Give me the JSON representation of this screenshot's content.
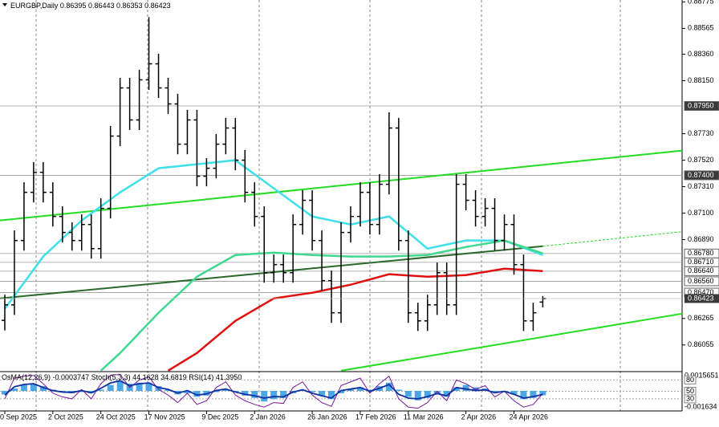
{
  "chart_data": {
    "type": "ohlc",
    "title": "EURGBP,Daily",
    "color": "#000000",
    "open": [
      0.8625,
      0.86373,
      0.86883,
      0.87265,
      0.87424,
      0.87265,
      0.87074,
      0.86947,
      0.86883,
      0.8701,
      0.86819,
      0.87138,
      0.87711,
      0.88093,
      0.87839,
      0.88157,
      0.88284,
      0.88093,
      0.87966,
      0.87647,
      0.87839,
      0.87393,
      0.87456,
      0.87647,
      0.87775,
      0.8752,
      0.87265,
      0.87074,
      0.86628,
      0.86692,
      0.86628,
      0.8701,
      0.87202,
      0.86883,
      0.86565,
      0.8631,
      0.86947,
      0.87074,
      0.87265,
      0.8701,
      0.87329,
      0.87775,
      0.86883,
      0.8631,
      0.86246,
      0.86373,
      0.86628,
      0.86373,
      0.87329,
      0.87202,
      0.87074,
      0.87138,
      0.86883,
      0.8701,
      0.86692,
      0.86246,
      0.86395
    ],
    "high": [
      0.86453,
      0.86963,
      0.87345,
      0.87504,
      0.87504,
      0.87345,
      0.87154,
      0.87027,
      0.8709,
      0.8709,
      0.87218,
      0.87791,
      0.88173,
      0.88173,
      0.88237,
      0.88654,
      0.88364,
      0.88173,
      0.88046,
      0.87919,
      0.87919,
      0.87536,
      0.87727,
      0.87855,
      0.87855,
      0.876,
      0.87345,
      0.87154,
      0.86772,
      0.86772,
      0.8709,
      0.87282,
      0.87282,
      0.86963,
      0.86645,
      0.87027,
      0.87154,
      0.87345,
      0.87345,
      0.87409,
      0.879,
      0.87855,
      0.86963,
      0.8639,
      0.86453,
      0.86708,
      0.86708,
      0.87409,
      0.87409,
      0.87282,
      0.87218,
      0.87218,
      0.8709,
      0.8709,
      0.86772,
      0.8639,
      0.86443
    ],
    "low": [
      0.8617,
      0.86293,
      0.86803,
      0.87185,
      0.87185,
      0.86994,
      0.86867,
      0.86803,
      0.86803,
      0.86739,
      0.86739,
      0.87058,
      0.87631,
      0.87759,
      0.87759,
      0.88077,
      0.88013,
      0.87886,
      0.87567,
      0.87567,
      0.87313,
      0.87313,
      0.87376,
      0.87567,
      0.8744,
      0.87185,
      0.86994,
      0.86548,
      0.86548,
      0.86548,
      0.86548,
      0.8693,
      0.86803,
      0.86485,
      0.8623,
      0.8623,
      0.86867,
      0.86994,
      0.8693,
      0.8693,
      0.87249,
      0.86803,
      0.8623,
      0.86166,
      0.86166,
      0.86293,
      0.86293,
      0.86293,
      0.87122,
      0.86994,
      0.86994,
      0.86803,
      0.86803,
      0.86612,
      0.86166,
      0.86166,
      0.86353
    ],
    "close": [
      0.86373,
      0.86883,
      0.87265,
      0.87424,
      0.87265,
      0.87074,
      0.86947,
      0.86883,
      0.8701,
      0.86819,
      0.87138,
      0.87711,
      0.88093,
      0.87839,
      0.88157,
      0.88284,
      0.88093,
      0.87966,
      0.87647,
      0.87839,
      0.87393,
      0.87456,
      0.87647,
      0.87775,
      0.8752,
      0.87265,
      0.87074,
      0.86628,
      0.86692,
      0.86628,
      0.8701,
      0.87202,
      0.86883,
      0.86565,
      0.8631,
      0.86947,
      0.87074,
      0.87265,
      0.8701,
      0.87329,
      0.87775,
      0.86883,
      0.8631,
      0.86246,
      0.86373,
      0.86628,
      0.86373,
      0.87329,
      0.87202,
      0.87074,
      0.87138,
      0.86883,
      0.8701,
      0.86692,
      0.86246,
      0.8631,
      0.86423
    ],
    "xlim": [
      -0.5,
      70.5
    ],
    "ylim": [
      0.8585,
      0.8879
    ],
    "yticks": [
      0.88775,
      0.88565,
      {
        "value": 0.8836,
        "label": "0.88360"
      },
      {
        "value": 0.8815,
        "label": "0.88150"
      },
      {
        "value": 0.8773,
        "label": "0.87730"
      },
      {
        "value": 0.8752,
        "label": "0.87520"
      },
      {
        "value": 0.8731,
        "label": "0.87310"
      },
      {
        "value": 0.871,
        "label": "0.87100"
      },
      {
        "value": 0.8689,
        "label": "0.86890"
      },
      0.86265,
      0.86055
    ],
    "levels": [
      {
        "value": 0.8795,
        "label": "0.87950"
      },
      {
        "value": 0.874,
        "label": "0.87400"
      },
      {
        "value": 0.8678,
        "label": "0.86780"
      },
      {
        "value": 0.8671,
        "label": "0.86710"
      },
      {
        "value": 0.8664,
        "label": "0.86640"
      },
      {
        "value": 0.8656,
        "label": "0.86560"
      },
      {
        "value": 0.8647,
        "label": "0.86470"
      }
    ],
    "xticks": [
      {
        "value": 0,
        "label": "0 Sep 2025"
      },
      {
        "value": 5,
        "label": "2 Oct 2025"
      },
      {
        "value": 10,
        "label": "24 Oct 2025"
      },
      {
        "value": 15,
        "label": "17 Nov 2025"
      },
      {
        "value": 21,
        "label": "9 Dec 2025"
      },
      {
        "value": 26,
        "label": "2 Jan 2026"
      },
      {
        "value": 32,
        "label": "26 Jan 2026"
      },
      {
        "value": 37,
        "label": "17 Feb 2026"
      },
      {
        "value": 42,
        "label": "11 Mar 2026"
      },
      {
        "value": 48,
        "label": "2 Apr 2026"
      },
      {
        "value": 53,
        "label": "24 Apr 2026"
      }
    ],
    "overlays": [
      {
        "color": "#40e0e8",
        "x": [
          0,
          4,
          8,
          12,
          16,
          20,
          24,
          28,
          32,
          36,
          40,
          44,
          48,
          52,
          56
        ],
        "values": [
          0.86342,
          0.86756,
          0.87042,
          0.87265,
          0.87456,
          0.87488,
          0.8752,
          0.87297,
          0.87074,
          0.8701,
          0.87074,
          0.86819,
          0.86883,
          0.86883,
          0.86768
        ]
      },
      {
        "color": "#40d890",
        "x": [
          10,
          12,
          16,
          20,
          24,
          28,
          32,
          36,
          40,
          44,
          48,
          52,
          56
        ],
        "values": [
          0.85851,
          0.85991,
          0.8631,
          0.86596,
          0.86768,
          0.86787,
          0.86768,
          0.86756,
          0.86756,
          0.86768,
          0.86832,
          0.86883,
          0.86781
        ]
      },
      {
        "color": "#e01010",
        "x": [
          17,
          20,
          24,
          28,
          32,
          36,
          40,
          44,
          48,
          52,
          56
        ],
        "values": [
          0.85851,
          0.85991,
          0.86246,
          0.86424,
          0.86469,
          0.86533,
          0.86616,
          0.86596,
          0.86609,
          0.8666,
          0.86641
        ]
      }
    ],
    "trendlines": [
      {
        "color": "#22dd22",
        "dashed": false,
        "x": [
          -0.5,
          70.5
        ],
        "values": [
          0.87042,
          0.87596
        ]
      },
      {
        "color": "#22dd22",
        "dashed": false,
        "x": [
          35,
          70.5
        ],
        "values": [
          0.85851,
          0.86303
        ]
      },
      {
        "color": "#2a6a2a",
        "dashed": false,
        "x": [
          -0.5,
          56
        ],
        "values": [
          0.86424,
          0.86838
        ]
      },
      {
        "color": "#22dd22",
        "dashed": true,
        "x": [
          56,
          70.5
        ],
        "values": [
          0.86838,
          0.86953
        ]
      }
    ],
    "indicator": {
      "osma_name": "OsMA(12,26,9)",
      "stoch_name": "Stoch(5,3,3)",
      "stoch_signal": 34.6819,
      "rsi_name": "RSI(14)",
      "rsi_value_label": "41.3950",
      "ylim": [
        -0.001634,
        0.0015651
      ],
      "yticks": [
        0.0015651,
        -0.001634
      ],
      "osc_ylim": [
        0,
        100
      ],
      "osc_ticks": [
        80,
        50,
        30
      ],
      "osma_color": "#4aa8e8",
      "stoch_color": "#7a1aa0",
      "rsi_color": "#1030a0",
      "osma": [
        -0.0003,
        0.0002,
        0.0005,
        0.0006,
        0.0004,
        0.0001,
        -0.0001,
        -0.0002,
        -0.0001,
        -0.0002,
        0.0001,
        0.0005,
        0.0008,
        0.0006,
        0.0007,
        0.0007,
        0.0004,
        0.0001,
        -0.0003,
        -0.0002,
        -0.0005,
        -0.0004,
        -0.0001,
        0.0001,
        -0.0001,
        -0.0004,
        -0.0006,
        -0.0009,
        -0.0007,
        -0.0006,
        -0.0002,
        0.0001,
        -0.0001,
        -0.0004,
        -0.0007,
        -0.0002,
        0.0001,
        0.0003,
        0.0001,
        0.0004,
        0.0007,
        0.0001,
        -0.0005,
        -0.0008,
        -0.0006,
        -0.0003,
        -0.0005,
        0.0003,
        0.0005,
        0.0003,
        0.0002,
        -0.0001,
        0,
        -0.0003,
        -0.0007,
        -0.0006,
        -0.0003747
      ],
      "stoch": [
        30,
        85,
        90,
        92,
        70,
        45,
        35,
        30,
        55,
        30,
        70,
        92,
        95,
        60,
        80,
        88,
        55,
        40,
        20,
        45,
        15,
        25,
        60,
        75,
        40,
        25,
        15,
        8,
        20,
        18,
        60,
        75,
        40,
        20,
        10,
        65,
        75,
        85,
        45,
        70,
        90,
        30,
        8,
        5,
        20,
        50,
        25,
        80,
        70,
        55,
        65,
        35,
        50,
        25,
        8,
        15,
        44.1628
      ],
      "rsi": [
        40,
        62,
        68,
        70,
        60,
        52,
        48,
        47,
        52,
        46,
        58,
        72,
        78,
        65,
        70,
        72,
        60,
        55,
        45,
        52,
        40,
        43,
        52,
        56,
        48,
        42,
        38,
        32,
        36,
        35,
        48,
        54,
        45,
        38,
        32,
        52,
        56,
        60,
        50,
        58,
        68,
        42,
        32,
        30,
        36,
        44,
        38,
        60,
        56,
        52,
        54,
        46,
        50,
        42,
        32,
        36,
        41.395
      ]
    }
  }
}
